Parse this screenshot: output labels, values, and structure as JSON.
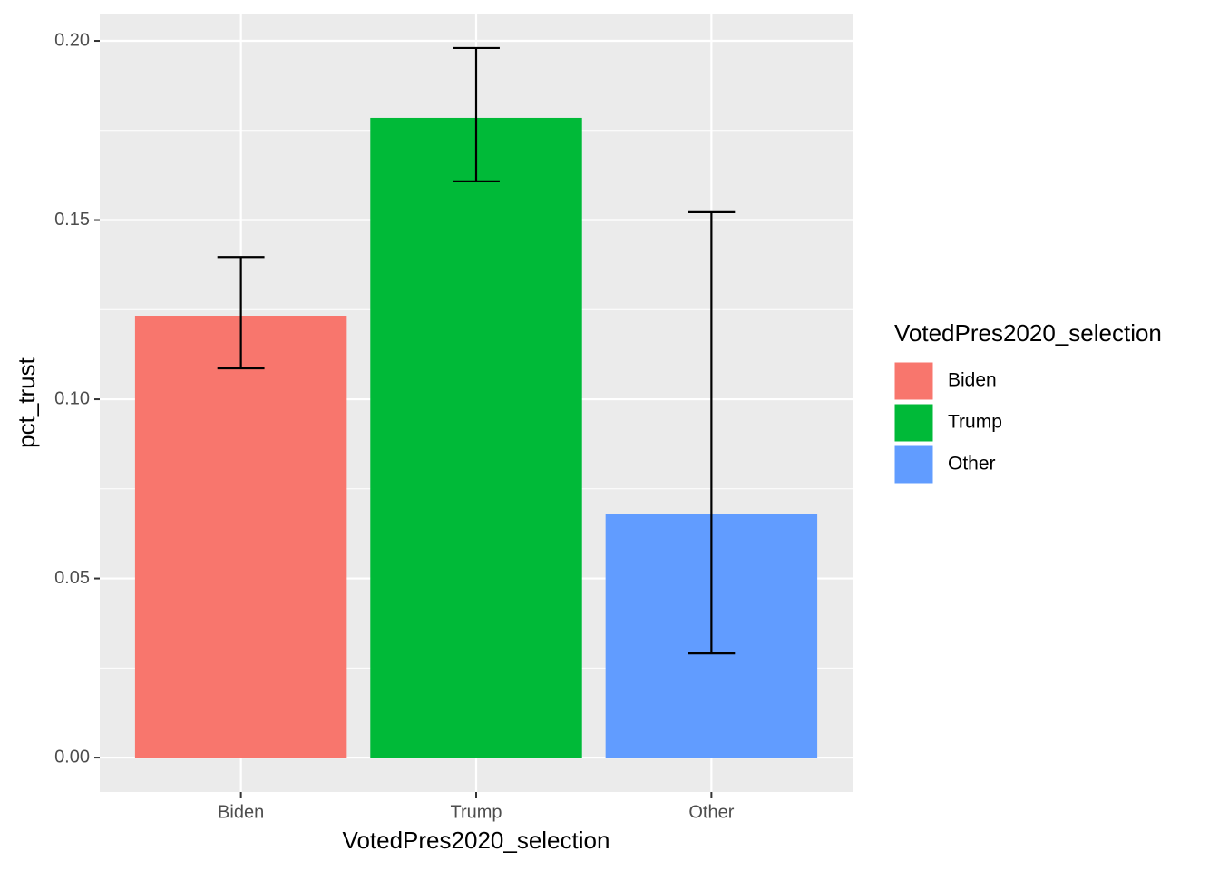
{
  "chart_data": {
    "type": "bar",
    "x_label": "VotedPres2020_selection",
    "y_label": "pct_trust",
    "legend_title": "VotedPres2020_selection",
    "categories": [
      "Biden",
      "Trump",
      "Other"
    ],
    "values": [
      0.1233,
      0.1785,
      0.0681
    ],
    "error_low": [
      0.1086,
      0.1608,
      0.0291
    ],
    "error_high": [
      0.1397,
      0.198,
      0.1522
    ],
    "colors": [
      "#F8766D",
      "#00BA38",
      "#619CFF"
    ],
    "ylim": [
      -0.0096,
      0.2076
    ],
    "yticks": [
      {
        "value": 0,
        "label": "0.00"
      },
      {
        "value": 0.05,
        "label": "0.05"
      },
      {
        "value": 0.1,
        "label": "0.10"
      },
      {
        "value": 0.15,
        "label": "0.15"
      },
      {
        "value": 0.2,
        "label": "0.20"
      }
    ],
    "grid": true,
    "legend": "right"
  }
}
